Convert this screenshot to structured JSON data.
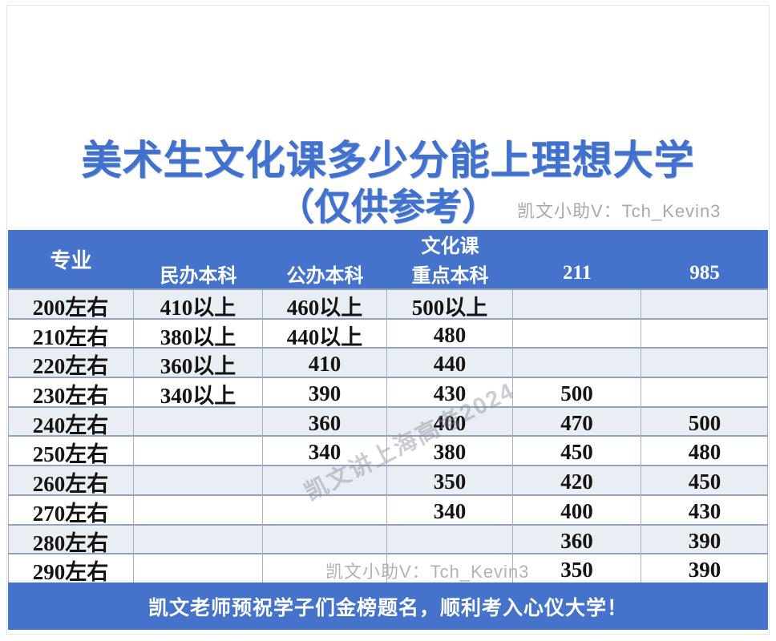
{
  "page": {
    "title_line1": "美术生文化课多少分能上理想大学",
    "title_line2": "（仅供参考）",
    "contact_watermark_top": "凯文小助V：Tch_Kevin3",
    "contact_watermark_bottom": "凯文小助V：Tch_Kevin3",
    "diagonal_watermark": "凯文讲上海高考2024",
    "footer_text": "凯文老师预祝学子们金榜题名，顺利考入心仪大学！"
  },
  "colors": {
    "header_footer_blue": "#4573CB",
    "title_blue": "#4170CD",
    "band_row_fill": "#E9EDF4",
    "grid_line": "#93A2BC",
    "watermark_gray": "#A9A9A9"
  },
  "table": {
    "header": {
      "major_col": "专业",
      "group_label": "文化课",
      "columns": [
        "民办本科",
        "公办本科",
        "重点本科",
        "211",
        "985"
      ]
    },
    "rows": [
      {
        "label": "200左右",
        "cells": [
          "410以上",
          "460以上",
          "500以上",
          "",
          ""
        ]
      },
      {
        "label": "210左右",
        "cells": [
          "380以上",
          "440以上",
          "480",
          "",
          ""
        ]
      },
      {
        "label": "220左右",
        "cells": [
          "360以上",
          "410",
          "440",
          "",
          ""
        ]
      },
      {
        "label": "230左右",
        "cells": [
          "340以上",
          "390",
          "430",
          "500",
          ""
        ]
      },
      {
        "label": "240左右",
        "cells": [
          "",
          "360",
          "400",
          "470",
          "500"
        ]
      },
      {
        "label": "250左右",
        "cells": [
          "",
          "340",
          "380",
          "450",
          "480"
        ]
      },
      {
        "label": "260左右",
        "cells": [
          "",
          "",
          "350",
          "420",
          "450"
        ]
      },
      {
        "label": "270左右",
        "cells": [
          "",
          "",
          "340",
          "400",
          "430"
        ]
      },
      {
        "label": "280左右",
        "cells": [
          "",
          "",
          "",
          "360",
          "390"
        ]
      },
      {
        "label": "290左右",
        "cells": [
          "",
          "",
          "",
          "350",
          "390"
        ]
      }
    ]
  },
  "chart_data": {
    "type": "table",
    "title": "美术生文化课多少分能上理想大学（仅供参考）",
    "columns": [
      "专业",
      "民办本科",
      "公办本科",
      "文化课 重点本科",
      "211",
      "985"
    ],
    "rows": [
      [
        "200左右",
        "410以上",
        "460以上",
        "500以上",
        "",
        ""
      ],
      [
        "210左右",
        "380以上",
        "440以上",
        "480",
        "",
        ""
      ],
      [
        "220左右",
        "360以上",
        "410",
        "440",
        "",
        ""
      ],
      [
        "230左右",
        "340以上",
        "390",
        "430",
        "500",
        ""
      ],
      [
        "240左右",
        "",
        "360",
        "400",
        "470",
        "500"
      ],
      [
        "250左右",
        "",
        "340",
        "380",
        "450",
        "480"
      ],
      [
        "260左右",
        "",
        "",
        "350",
        "420",
        "450"
      ],
      [
        "270左右",
        "",
        "",
        "340",
        "400",
        "430"
      ],
      [
        "280左右",
        "",
        "",
        "",
        "360",
        "390"
      ],
      [
        "290左右",
        "",
        "",
        "",
        "350",
        "390"
      ]
    ]
  }
}
